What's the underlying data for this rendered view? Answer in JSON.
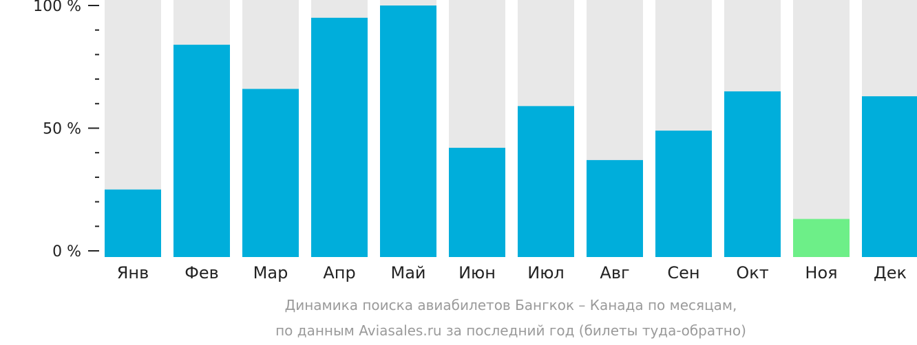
{
  "chart_data": {
    "type": "bar",
    "categories": [
      "Янв",
      "Фев",
      "Мар",
      "Апр",
      "Май",
      "Июн",
      "Июл",
      "Авг",
      "Сен",
      "Окт",
      "Ноя",
      "Дек"
    ],
    "values": [
      25,
      84,
      66,
      95,
      100,
      42,
      59,
      37,
      49,
      65,
      13,
      63
    ],
    "ylim": [
      0,
      100
    ],
    "yticks": [
      {
        "value": 100,
        "label": "100 %"
      },
      {
        "value": 50,
        "label": "50 %"
      },
      {
        "value": 0,
        "label": "0 %"
      }
    ],
    "minor_ticks": [
      90,
      80,
      70,
      60,
      40,
      30,
      20,
      10
    ],
    "highlight_index": 10,
    "colors": {
      "bar": "#00aedb",
      "highlight": "#6def88",
      "background_bar": "#e8e8e8",
      "axis": "#222222"
    },
    "caption": {
      "line1": "Динамика поиска авиабилетов Бангкок – Канада по месяцам,",
      "line2": "по данным Aviasales.ru за последний год (билеты туда-обратно)"
    }
  }
}
